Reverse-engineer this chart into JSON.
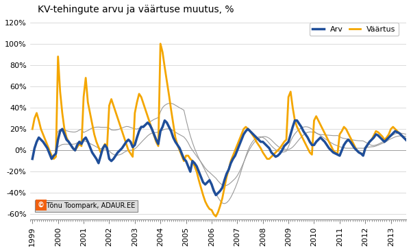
{
  "title": "KV-tehingute arvu ja väärtuse muutus, %",
  "watermark": "© Tõnu Toompark, ADAUR.EE",
  "line_arv_color": "#1f4e99",
  "line_vaartus_color": "#f4a600",
  "line_trend_color": "#999999",
  "background_color": "#ffffff",
  "ylim": [
    -0.65,
    1.25
  ],
  "yticks": [
    -0.6,
    -0.4,
    -0.2,
    0.0,
    0.2,
    0.4,
    0.6,
    0.8,
    1.0,
    1.2
  ],
  "ytick_labels": [
    "-60%",
    "-40%",
    "-20%",
    "0%",
    "20%",
    "40%",
    "60%",
    "80%",
    "100%",
    "120%"
  ],
  "legend_entries": [
    "Arv",
    "Väärtus"
  ],
  "start_year": 1999,
  "end_year": 2013,
  "arv": [
    -8,
    2,
    8,
    12,
    10,
    8,
    5,
    2,
    -3,
    -8,
    -5,
    -3,
    10,
    18,
    20,
    15,
    10,
    8,
    5,
    2,
    0,
    5,
    8,
    6,
    10,
    12,
    8,
    3,
    -2,
    -5,
    -8,
    -12,
    -5,
    2,
    5,
    2,
    -8,
    -10,
    -8,
    -5,
    -2,
    0,
    2,
    5,
    8,
    10,
    8,
    3,
    5,
    12,
    18,
    22,
    22,
    24,
    26,
    24,
    20,
    15,
    10,
    6,
    18,
    22,
    28,
    26,
    22,
    18,
    12,
    8,
    5,
    2,
    -3,
    -8,
    -10,
    -15,
    -20,
    -10,
    -12,
    -15,
    -20,
    -25,
    -30,
    -32,
    -30,
    -28,
    -32,
    -38,
    -42,
    -40,
    -38,
    -35,
    -28,
    -22,
    -18,
    -12,
    -8,
    -5,
    0,
    5,
    10,
    15,
    18,
    20,
    18,
    16,
    14,
    12,
    10,
    8,
    8,
    6,
    4,
    2,
    -2,
    -4,
    -6,
    -5,
    -3,
    0,
    4,
    6,
    8,
    15,
    22,
    28,
    28,
    25,
    22,
    18,
    15,
    12,
    8,
    5,
    5,
    8,
    10,
    12,
    10,
    8,
    5,
    2,
    0,
    -2,
    -3,
    -4,
    -5,
    0,
    5,
    8,
    10,
    8,
    5,
    2,
    0,
    -2,
    -3,
    -5,
    2,
    5,
    8,
    10,
    12,
    15,
    14,
    12,
    10,
    8,
    10,
    12,
    14,
    16,
    18,
    17,
    16,
    14,
    12,
    10,
    8,
    7,
    6,
    5,
    15,
    18
  ],
  "vaartus": [
    20,
    30,
    35,
    28,
    20,
    15,
    10,
    5,
    0,
    -5,
    -8,
    -6,
    88,
    55,
    35,
    20,
    12,
    8,
    5,
    2,
    0,
    3,
    6,
    4,
    50,
    68,
    45,
    35,
    25,
    15,
    8,
    3,
    -2,
    2,
    6,
    3,
    42,
    48,
    42,
    36,
    30,
    24,
    18,
    12,
    6,
    0,
    -3,
    -6,
    35,
    45,
    53,
    50,
    44,
    38,
    32,
    26,
    20,
    14,
    8,
    4,
    100,
    92,
    78,
    65,
    52,
    38,
    25,
    12,
    5,
    0,
    -5,
    -10,
    -5,
    -5,
    -8,
    -10,
    -15,
    -20,
    -28,
    -35,
    -42,
    -48,
    -52,
    -55,
    -56,
    -60,
    -62,
    -58,
    -52,
    -45,
    -35,
    -25,
    -18,
    -10,
    -5,
    0,
    5,
    10,
    15,
    20,
    22,
    20,
    18,
    15,
    12,
    8,
    5,
    2,
    -2,
    -5,
    -8,
    -8,
    -6,
    -4,
    -2,
    0,
    2,
    5,
    8,
    10,
    50,
    55,
    40,
    28,
    22,
    18,
    14,
    10,
    6,
    2,
    -2,
    -4,
    28,
    32,
    28,
    24,
    20,
    16,
    12,
    8,
    4,
    0,
    -2,
    -3,
    15,
    18,
    22,
    20,
    16,
    12,
    8,
    4,
    0,
    -2,
    -3,
    -4,
    2,
    5,
    8,
    10,
    14,
    18,
    17,
    15,
    13,
    10,
    12,
    15,
    20,
    22,
    20,
    18,
    16,
    14,
    12,
    10,
    8,
    7,
    6,
    5,
    18,
    20
  ]
}
